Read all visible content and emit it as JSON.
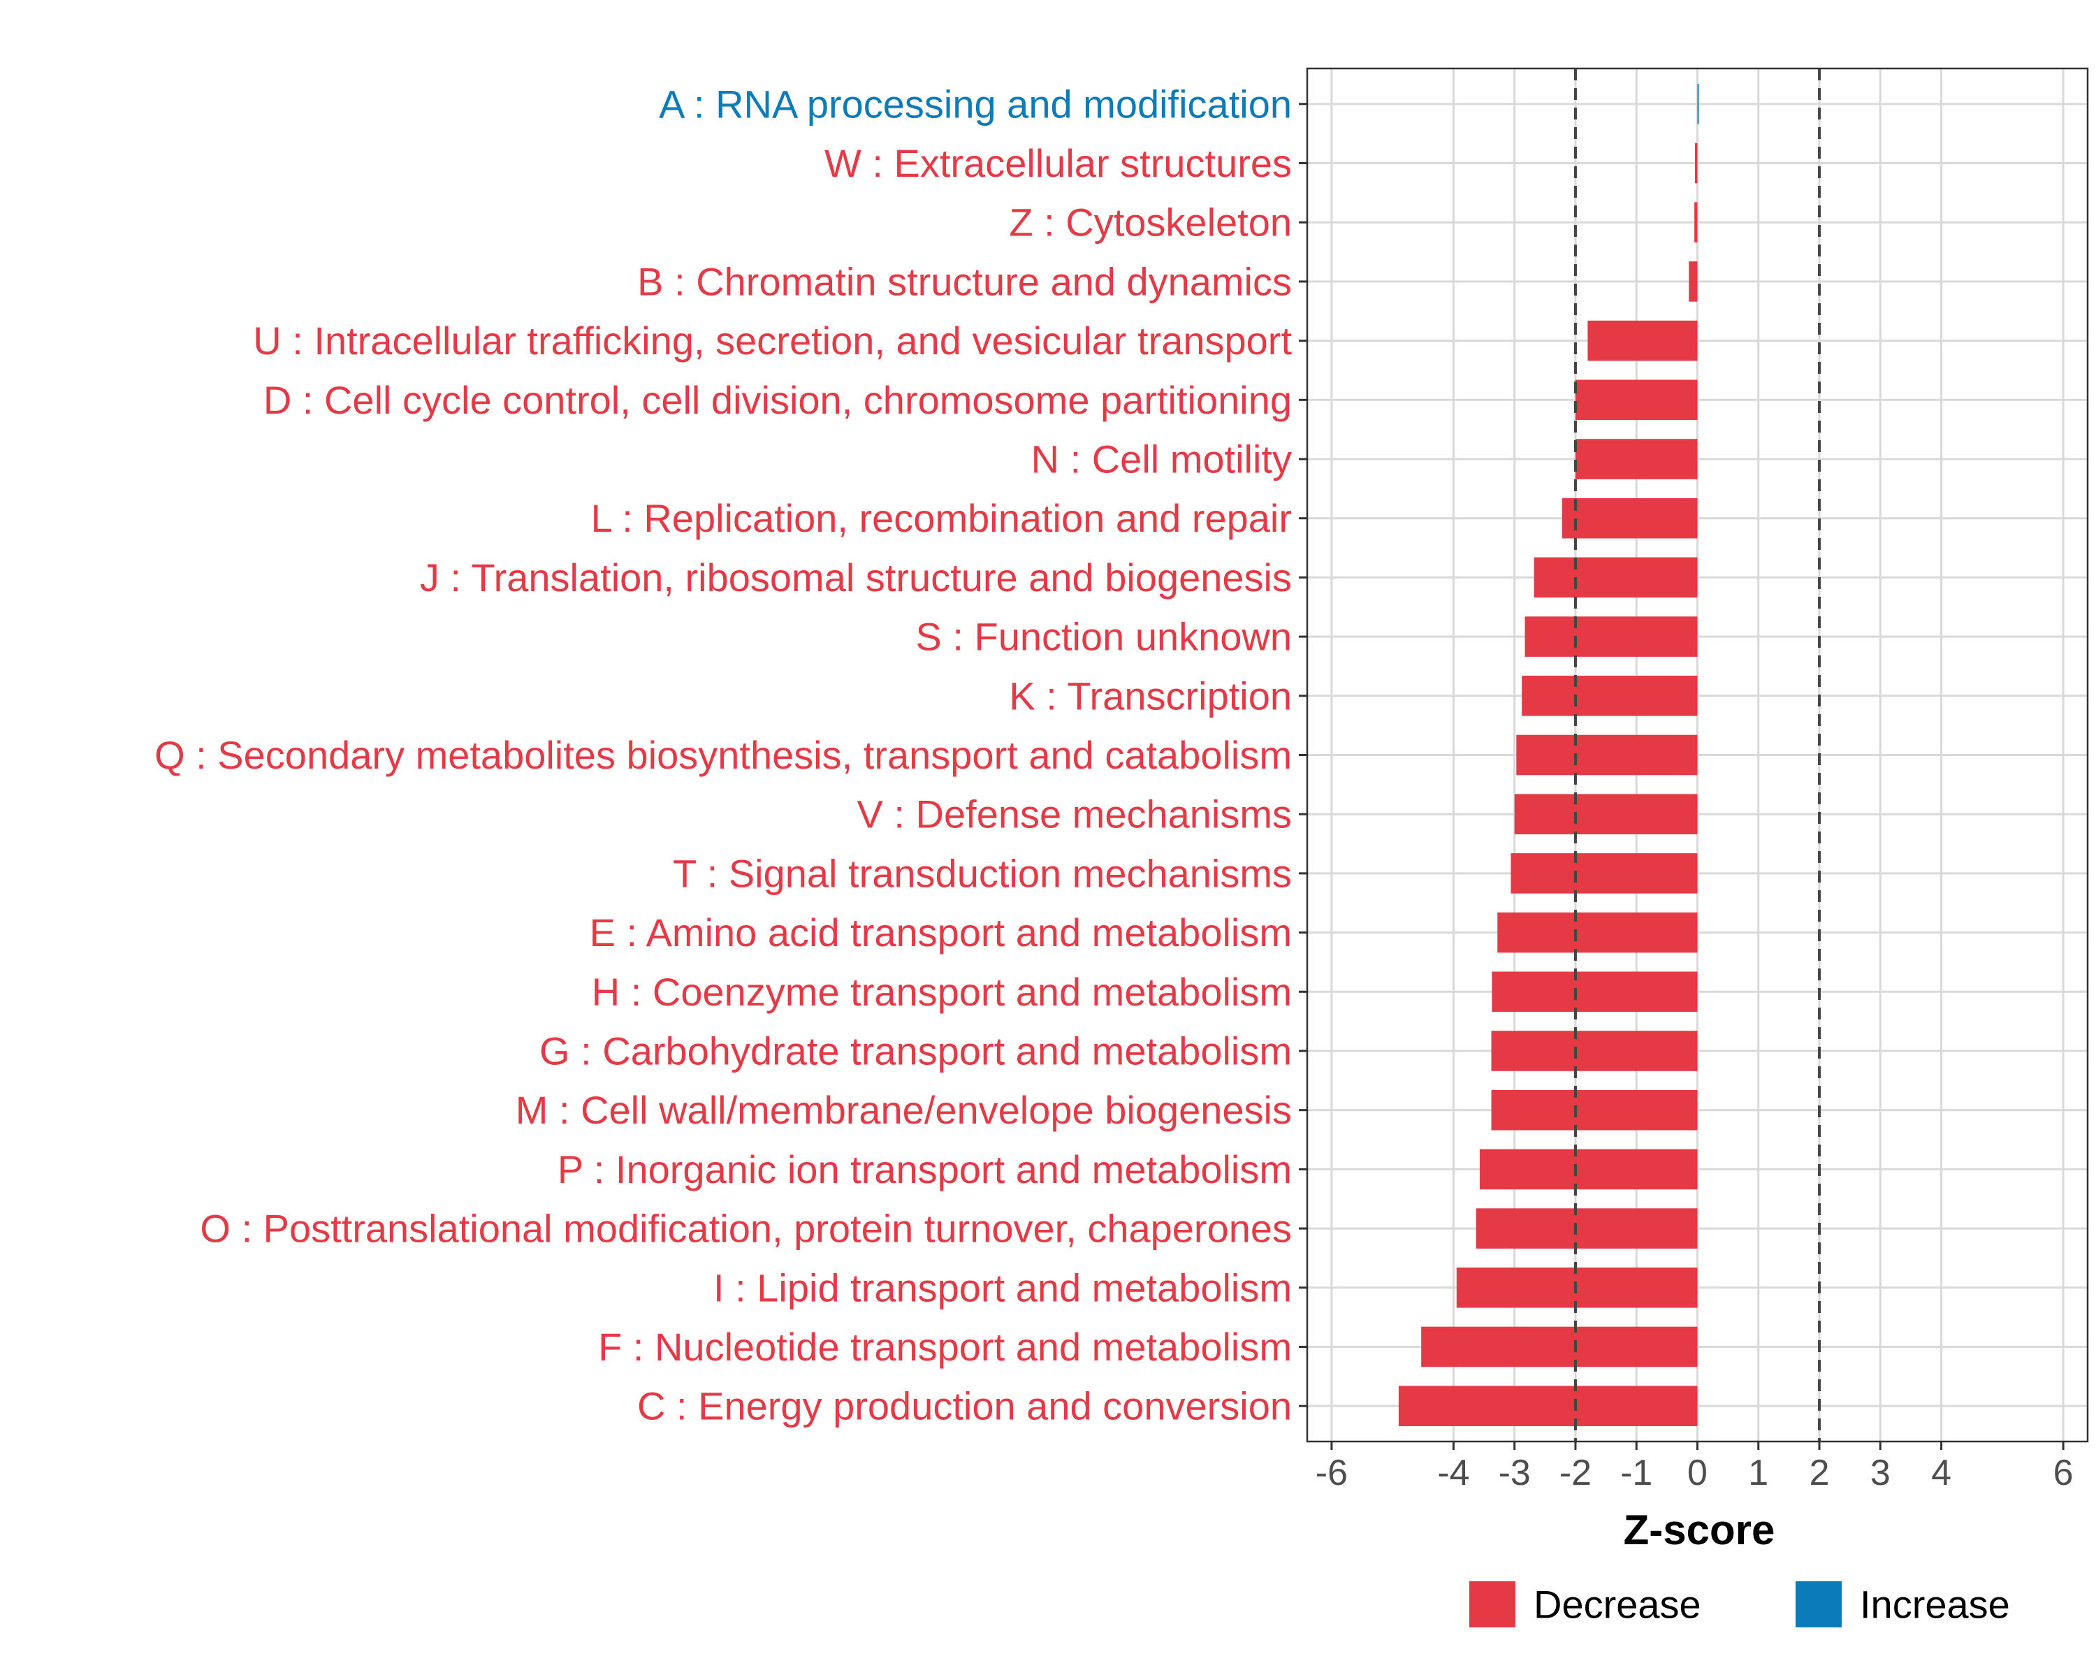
{
  "colors": {
    "decrease": "#E63946",
    "increase": "#0C7BBA",
    "grid": "#D9D9D9",
    "axis_text": "#4D4D4D",
    "threshold_line": "#444444"
  },
  "chart_data": {
    "type": "bar",
    "orientation": "horizontal",
    "xlabel": "Z-score",
    "ylabel": "",
    "xlim": [
      -6.4,
      6.4
    ],
    "x_ticks": [
      -6,
      -4,
      -3,
      -2,
      -1,
      0,
      1,
      2,
      3,
      4,
      6
    ],
    "x_tick_labels": [
      "-6",
      "-4",
      "-3",
      "-2",
      "-1",
      "0",
      "1",
      "2",
      "3",
      "4",
      "6"
    ],
    "threshold_lines": [
      -2,
      2
    ],
    "grid": true,
    "legend": {
      "position": "bottom",
      "entries": [
        {
          "label": "Decrease",
          "key": "decrease"
        },
        {
          "label": "Increase",
          "key": "increase"
        }
      ]
    },
    "categories": [
      "A : RNA processing and modification",
      "W : Extracellular structures",
      "Z : Cytoskeleton",
      "B : Chromatin structure and dynamics",
      "U : Intracellular trafficking, secretion, and vesicular transport",
      "D : Cell cycle control, cell division, chromosome partitioning",
      "N : Cell motility",
      "L : Replication, recombination and repair",
      "J : Translation, ribosomal structure and biogenesis",
      "S : Function unknown",
      "K : Transcription",
      "Q : Secondary metabolites biosynthesis, transport and catabolism",
      "V : Defense mechanisms",
      "T : Signal transduction mechanisms",
      "E : Amino acid transport and metabolism",
      "H : Coenzyme transport and metabolism",
      "G : Carbohydrate transport and metabolism",
      "M : Cell wall/membrane/envelope biogenesis",
      "P : Inorganic ion transport and metabolism",
      "O : Posttranslational modification, protein turnover, chaperones",
      "I : Lipid transport and metabolism",
      "F : Nucleotide transport and metabolism",
      "C : Energy production and conversion"
    ],
    "values": [
      0.02,
      -0.04,
      -0.05,
      -0.14,
      -1.8,
      -2.0,
      -2.0,
      -2.22,
      -2.68,
      -2.83,
      -2.88,
      -2.97,
      -3.0,
      -3.06,
      -3.28,
      -3.37,
      -3.38,
      -3.38,
      -3.57,
      -3.63,
      -3.95,
      -4.53,
      -4.9
    ],
    "direction": [
      "increase",
      "decrease",
      "decrease",
      "decrease",
      "decrease",
      "decrease",
      "decrease",
      "decrease",
      "decrease",
      "decrease",
      "decrease",
      "decrease",
      "decrease",
      "decrease",
      "decrease",
      "decrease",
      "decrease",
      "decrease",
      "decrease",
      "decrease",
      "decrease",
      "decrease",
      "decrease"
    ]
  }
}
